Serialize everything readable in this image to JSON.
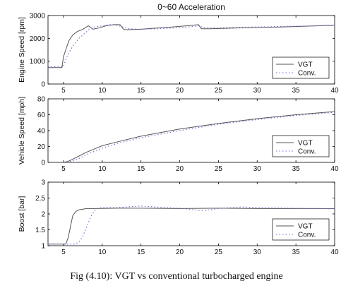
{
  "figure": {
    "title": "0~60 Acceleration",
    "caption": "Fig (4.10): VGT vs conventional turbocharged engine"
  },
  "colors": {
    "vgt": "#555555",
    "conv": "#6a6ad8",
    "axis": "#000000"
  },
  "chart_data": [
    {
      "type": "line",
      "title": "0~60 Acceleration",
      "xlabel": "",
      "ylabel": "Engine Speed [rpm]",
      "xlim": [
        3,
        40
      ],
      "ylim": [
        0,
        3000
      ],
      "xticks": [
        5,
        10,
        15,
        20,
        25,
        30,
        35,
        40
      ],
      "yticks": [
        0,
        1000,
        2000,
        3000
      ],
      "grid": false,
      "legend": "lower-right",
      "series": [
        {
          "name": "VGT",
          "style": "solid",
          "x": [
            3,
            4,
            4.8,
            5,
            5.3,
            5.7,
            6.2,
            6.8,
            7.5,
            8.2,
            8.8,
            9.5,
            10.5,
            11.5,
            12.3,
            12.8,
            13.5,
            15,
            17,
            19,
            21,
            22.4,
            22.8,
            24,
            27,
            30,
            33,
            36,
            40
          ],
          "y": [
            720,
            720,
            720,
            1200,
            1500,
            1900,
            2150,
            2300,
            2400,
            2550,
            2400,
            2450,
            2550,
            2600,
            2600,
            2380,
            2380,
            2400,
            2450,
            2500,
            2550,
            2600,
            2420,
            2420,
            2450,
            2480,
            2500,
            2530,
            2580
          ]
        },
        {
          "name": "Conv.",
          "style": "dotted",
          "x": [
            3,
            5,
            5.5,
            6,
            6.5,
            7,
            7.5,
            8,
            8.5,
            9,
            10,
            11,
            12,
            13.5,
            15,
            17,
            19,
            21,
            22.5,
            23,
            24,
            27,
            30,
            33,
            36,
            40
          ],
          "y": [
            750,
            780,
            1250,
            1550,
            1800,
            2000,
            2150,
            2300,
            2450,
            2500,
            2550,
            2600,
            2560,
            2420,
            2400,
            2420,
            2450,
            2500,
            2550,
            2470,
            2460,
            2480,
            2500,
            2520,
            2540,
            2560
          ]
        }
      ]
    },
    {
      "type": "line",
      "title": "",
      "xlabel": "",
      "ylabel": "Vehicle Speed [mph]",
      "xlim": [
        3,
        40
      ],
      "ylim": [
        0,
        80
      ],
      "xticks": [
        5,
        10,
        15,
        20,
        25,
        30,
        35,
        40
      ],
      "yticks": [
        0,
        20,
        40,
        60,
        80
      ],
      "grid": false,
      "legend": "lower-right",
      "series": [
        {
          "name": "VGT",
          "style": "solid",
          "x": [
            5,
            5.5,
            6,
            7,
            8,
            9,
            10,
            12,
            15,
            20,
            25,
            30,
            35,
            40
          ],
          "y": [
            0,
            1,
            3,
            8,
            13,
            17,
            21,
            26,
            33,
            42,
            49,
            55,
            60,
            64
          ]
        },
        {
          "name": "Conv.",
          "style": "dotted",
          "x": [
            5,
            5.5,
            6,
            7,
            8,
            9,
            10,
            12,
            15,
            20,
            25,
            30,
            35,
            40
          ],
          "y": [
            0,
            0.5,
            1.5,
            5,
            10,
            14,
            18,
            24,
            31,
            40,
            48,
            54,
            59,
            63
          ]
        }
      ]
    },
    {
      "type": "line",
      "title": "",
      "xlabel": "",
      "ylabel": "Boost [bar]",
      "xlim": [
        3,
        40
      ],
      "ylim": [
        1,
        3
      ],
      "xticks": [
        5,
        10,
        15,
        20,
        25,
        30,
        35,
        40
      ],
      "yticks": [
        1,
        1.5,
        2,
        2.5,
        3
      ],
      "grid": false,
      "legend": "lower-right",
      "series": [
        {
          "name": "VGT",
          "style": "solid",
          "x": [
            3,
            5.3,
            5.6,
            5.9,
            6.2,
            6.6,
            7,
            7.5,
            8,
            8.5,
            9,
            12,
            15,
            20,
            25,
            30,
            35,
            40
          ],
          "y": [
            1.05,
            1.05,
            1.25,
            1.6,
            1.95,
            2.08,
            2.13,
            2.15,
            2.17,
            2.17,
            2.17,
            2.18,
            2.18,
            2.17,
            2.18,
            2.17,
            2.17,
            2.17
          ]
        },
        {
          "name": "Conv.",
          "style": "dotted",
          "x": [
            3,
            6.5,
            7,
            7.5,
            8,
            8.5,
            9,
            9.5,
            10,
            12,
            15,
            18,
            20,
            23,
            25,
            28,
            30,
            35,
            40
          ],
          "y": [
            1.05,
            1.05,
            1.12,
            1.3,
            1.6,
            1.9,
            2.1,
            2.18,
            2.2,
            2.2,
            2.25,
            2.2,
            2.18,
            2.1,
            2.17,
            2.22,
            2.2,
            2.18,
            2.16
          ]
        }
      ]
    }
  ]
}
